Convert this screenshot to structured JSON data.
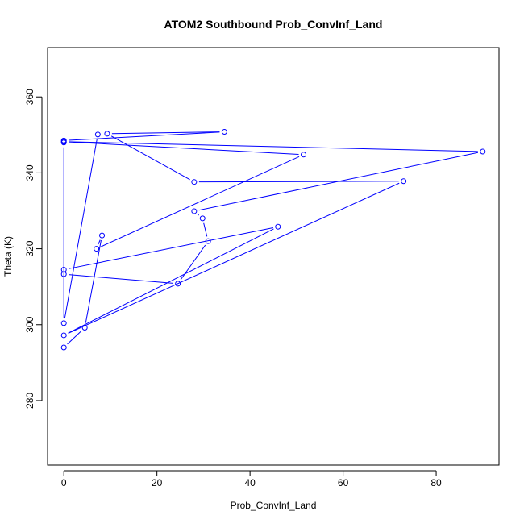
{
  "chart_data": {
    "type": "line",
    "title": "ATOM2 Southbound Prob_ConvInf_Land",
    "xlabel": "Prob_ConvInf_Land",
    "ylabel": "Theta (K)",
    "xlim": [
      -3.5,
      93.5
    ],
    "ylim": [
      263,
      373
    ],
    "x_ticks": [
      0,
      20,
      40,
      60,
      80
    ],
    "y_ticks": [
      280,
      300,
      320,
      340,
      360
    ],
    "grid": false,
    "legend": "none",
    "series": [
      {
        "color": "#0000ff",
        "marker": "open-circle",
        "points": [
          {
            "x": 0,
            "y": 294
          },
          {
            "x": 4.5,
            "y": 299.2
          },
          {
            "x": 8.2,
            "y": 323.5
          },
          {
            "x": 7,
            "y": 320
          },
          {
            "x": 51.5,
            "y": 344.8
          },
          {
            "x": 0,
            "y": 348.2
          },
          {
            "x": 90,
            "y": 345.6
          },
          {
            "x": 28,
            "y": 329.9
          },
          {
            "x": 29.8,
            "y": 328
          },
          {
            "x": 31,
            "y": 322
          },
          {
            "x": 24.5,
            "y": 310.8
          },
          {
            "x": 0,
            "y": 313.3
          },
          {
            "x": 0,
            "y": 314.5
          },
          {
            "x": 46,
            "y": 325.8
          },
          {
            "x": 0,
            "y": 297.2
          },
          {
            "x": 73,
            "y": 337.8
          },
          {
            "x": 28,
            "y": 337.6
          },
          {
            "x": 9.3,
            "y": 350.3
          },
          {
            "x": 34.5,
            "y": 350.8
          },
          {
            "x": 0,
            "y": 348.5
          },
          {
            "x": 0,
            "y": 348
          },
          {
            "x": 0,
            "y": 300.4
          },
          {
            "x": 7.3,
            "y": 350.1
          }
        ]
      }
    ]
  }
}
